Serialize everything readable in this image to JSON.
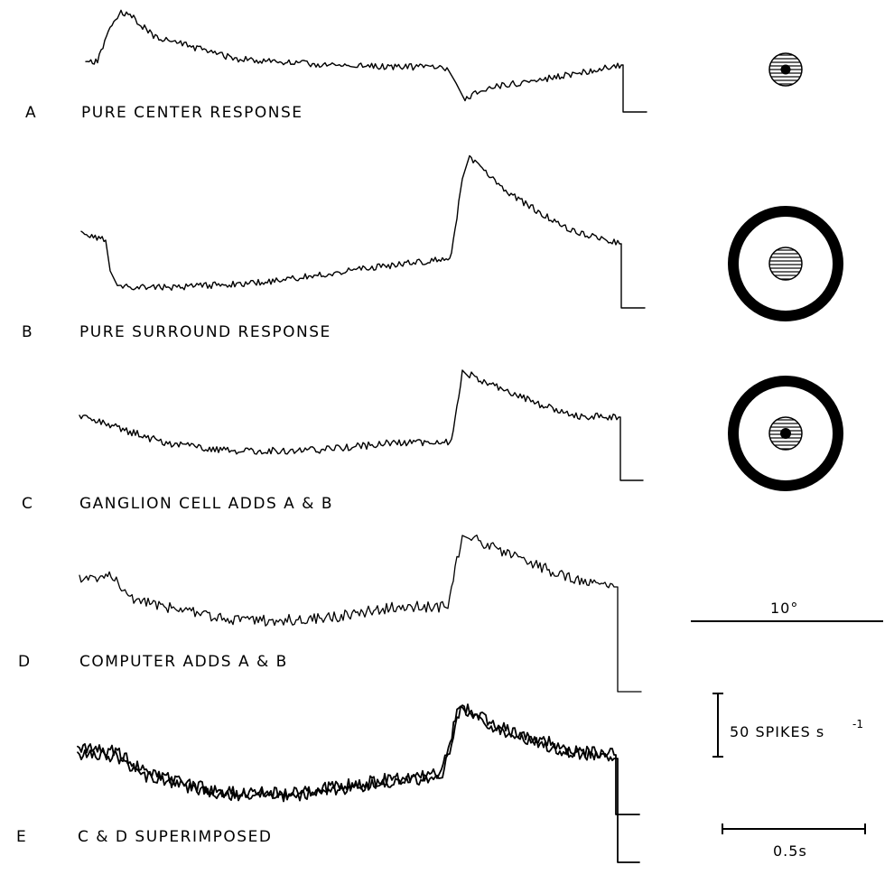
{
  "panels": [
    {
      "letter": "A",
      "caption": "PURE CENTER RESPONSE"
    },
    {
      "letter": "B",
      "caption": "PURE SURROUND RESPONSE"
    },
    {
      "letter": "C",
      "caption": "GANGLION CELL ADDS A & B"
    },
    {
      "letter": "D",
      "caption": "COMPUTER ADDS A & B"
    },
    {
      "letter": "E",
      "caption": "C & D SUPERIMPOSED"
    }
  ],
  "scale_bars": {
    "spatial": "10°",
    "rate_value": "50 SPIKES s",
    "rate_exponent": "-1",
    "time": "0.5s"
  },
  "stimulus_icons": [
    "center-spot-icon",
    "surround-annulus-icon",
    "center-and-surround-icon"
  ],
  "ink_color": "#000000"
}
